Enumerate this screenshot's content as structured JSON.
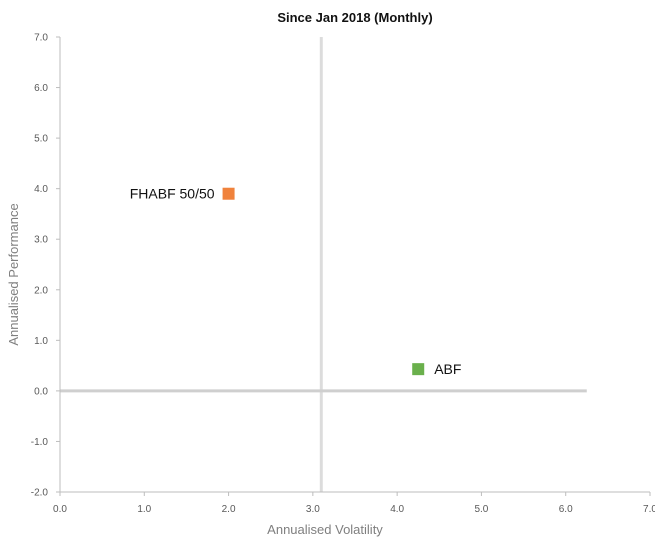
{
  "chart_data": {
    "type": "scatter",
    "title": "Since Jan 2018 (Monthly)",
    "xlabel": "Annualised Volatility",
    "ylabel": "Annualised Performance",
    "xlim": [
      0,
      7
    ],
    "ylim": [
      -2,
      7
    ],
    "xticks": [
      "0.0",
      "1.0",
      "2.0",
      "3.0",
      "4.0",
      "5.0",
      "6.0",
      "7.0"
    ],
    "yticks": [
      "-2.0",
      "-1.0",
      "0.0",
      "1.0",
      "2.0",
      "3.0",
      "4.0",
      "5.0",
      "6.0",
      "7.0"
    ],
    "grid": false,
    "reference_lines": {
      "vertical_x": 3.1,
      "horizontal_y": 0.0,
      "horizontal_x_end": 6.25
    },
    "points": [
      {
        "label": "FHABF 50/50",
        "x": 2.0,
        "y": 3.9,
        "color": "#f0823c",
        "label_side": "left"
      },
      {
        "label": "ABF",
        "x": 4.25,
        "y": 0.43,
        "color": "#6ab04c",
        "label_side": "right"
      }
    ]
  }
}
